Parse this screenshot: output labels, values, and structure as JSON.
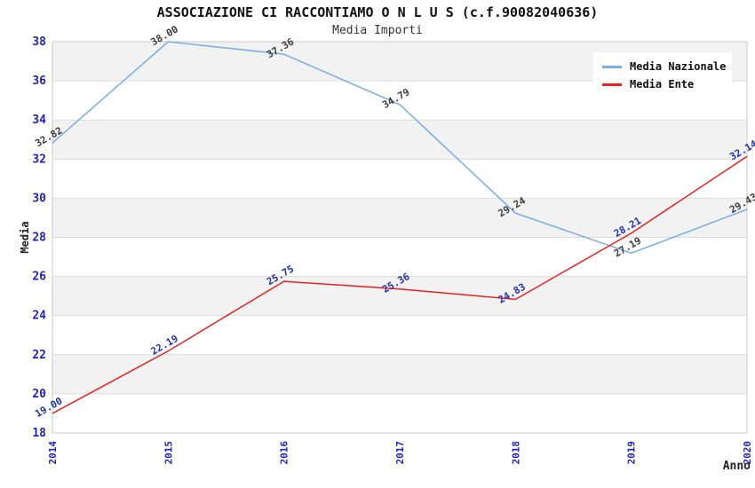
{
  "title": "ASSOCIAZIONE CI RACCONTIAMO O N L U S (c.f.90082040636)",
  "subtitle": "Media Importi",
  "chart_data": {
    "type": "line",
    "x": [
      "2014",
      "2015",
      "2016",
      "2017",
      "2018",
      "2019",
      "2020"
    ],
    "xlabel": "Anno",
    "ylabel": "Media",
    "ylim": [
      18,
      38
    ],
    "ytick_step": 2,
    "grid": true,
    "legend_position": "top-right",
    "series": [
      {
        "name": "Media Nazionale",
        "color": "#77ade4",
        "label_color": "#3c3c3c",
        "values": [
          32.82,
          38.0,
          37.36,
          34.79,
          29.24,
          27.19,
          29.43
        ]
      },
      {
        "name": "Media Ente",
        "color": "#e62222",
        "label_color": "#2233aa",
        "values": [
          19.0,
          22.19,
          25.75,
          25.36,
          24.83,
          28.21,
          32.14
        ]
      }
    ],
    "colors": {
      "tick_label": "#2222bb",
      "axis_title": "#222222",
      "band": "#f2f2f2",
      "gridline": "#dcdcdc",
      "frame": "#c8c8c8"
    }
  }
}
